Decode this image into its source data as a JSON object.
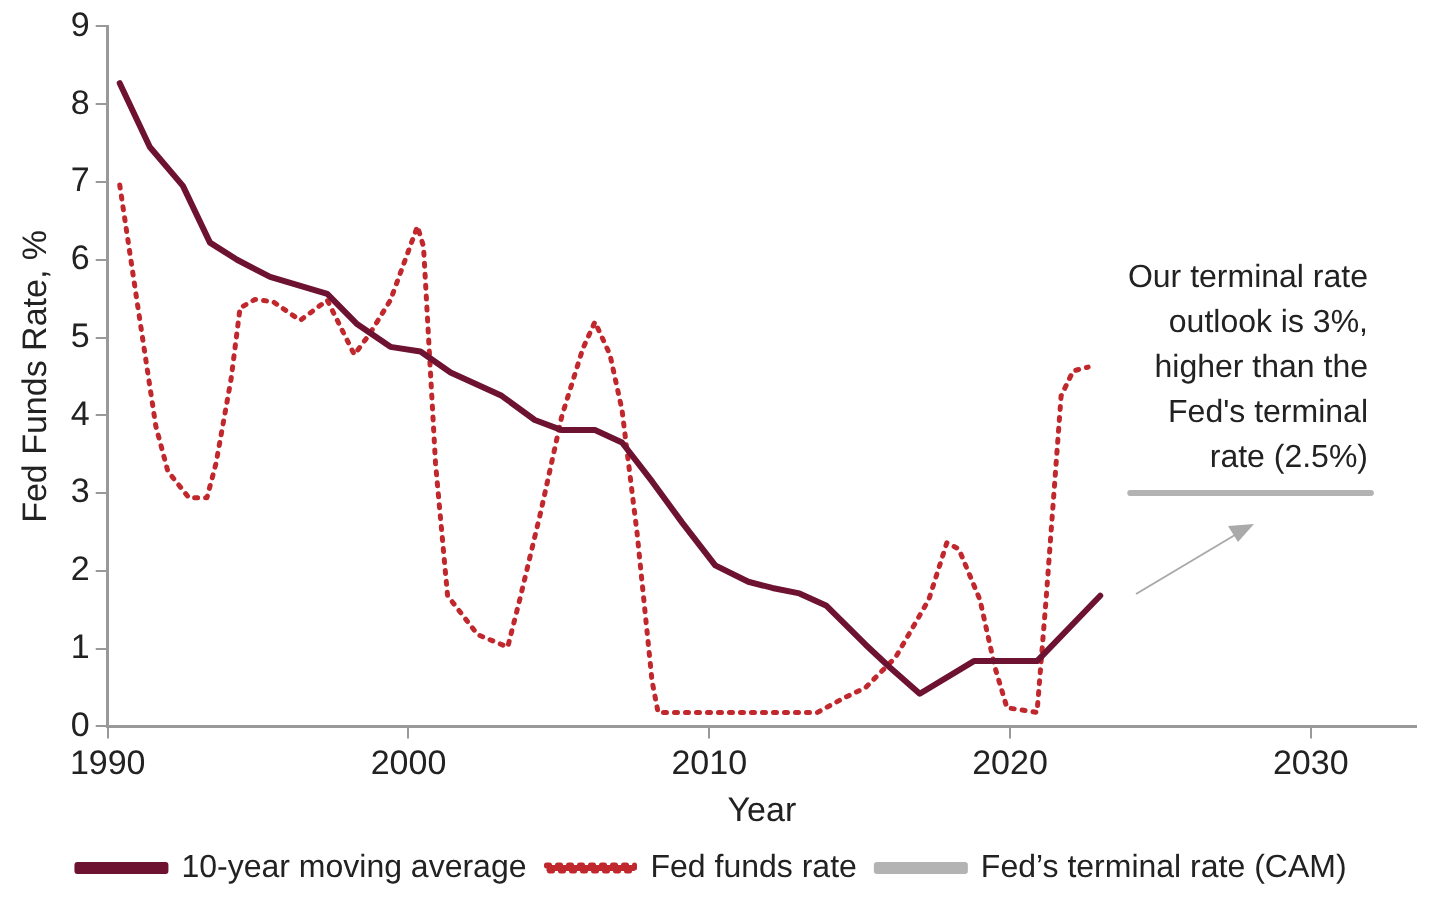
{
  "chart_data": {
    "type": "line",
    "xlabel": "Year",
    "ylabel": "Fed Funds Rate, %",
    "xlim": [
      1990,
      2033.5
    ],
    "xticks": [
      1990,
      2000,
      2010,
      2020,
      2030
    ],
    "ylim": [
      0,
      9
    ],
    "yticks": [
      0,
      1,
      2,
      3,
      4,
      5,
      6,
      7,
      8,
      9
    ],
    "grid": false,
    "legend": "bottom",
    "marker": "none",
    "annotations": [
      "Our terminal rate outlook is 3%, higher than the Fed's terminal rate (2.5%)"
    ],
    "series": [
      {
        "name": "10-year moving average",
        "color": "#6e1232",
        "line_style": "solid",
        "x": [
          1990.4,
          1991.4,
          1992.5,
          1993.4,
          1994.3,
          1995.4,
          1997.3,
          1998.3,
          1999.4,
          2000.4,
          2001.4,
          2003.1,
          2004.2,
          2005.1,
          2006.2,
          2007.1,
          2008.1,
          2009.1,
          2010.2,
          2011.3,
          2012.1,
          2013.0,
          2013.9,
          2015.2,
          2016.0,
          2017.0,
          2018.8,
          2020.9,
          2023.0
        ],
        "values": [
          8.27,
          7.45,
          6.95,
          6.22,
          6.0,
          5.78,
          5.56,
          5.17,
          4.88,
          4.82,
          4.55,
          4.25,
          3.94,
          3.81,
          3.81,
          3.65,
          3.15,
          2.62,
          2.07,
          1.86,
          1.78,
          1.71,
          1.55,
          1.05,
          0.76,
          0.42,
          0.84,
          0.84,
          1.68
        ]
      },
      {
        "name": "Fed funds rate",
        "color": "#c0282d",
        "line_style": "dotted",
        "x": [
          1990.4,
          1991.0,
          1991.6,
          1992.0,
          1992.7,
          1993.3,
          1993.6,
          1994.1,
          1994.4,
          1994.9,
          1995.5,
          1996.4,
          1997.3,
          1998.2,
          1998.7,
          1999.4,
          2000.3,
          2000.5,
          2000.9,
          2001.3,
          2002.3,
          2003.3,
          2003.7,
          2004.4,
          2005.1,
          2005.8,
          2006.2,
          2006.7,
          2007.1,
          2007.6,
          2008.1,
          2008.3,
          2013.6,
          2014.5,
          2015.2,
          2016.2,
          2017.3,
          2017.9,
          2018.3,
          2019.0,
          2019.5,
          2019.9,
          2020.9,
          2021.2,
          2021.7,
          2022.1,
          2022.6
        ],
        "values": [
          6.96,
          5.4,
          3.86,
          3.28,
          2.94,
          2.94,
          3.38,
          4.46,
          5.38,
          5.49,
          5.46,
          5.22,
          5.48,
          4.78,
          5.04,
          5.48,
          6.43,
          6.17,
          3.38,
          1.68,
          1.18,
          1.02,
          1.63,
          2.76,
          3.99,
          4.86,
          5.2,
          4.78,
          4.07,
          2.49,
          0.58,
          0.18,
          0.18,
          0.37,
          0.5,
          0.89,
          1.63,
          2.36,
          2.28,
          1.63,
          0.76,
          0.24,
          0.18,
          1.63,
          4.25,
          4.57,
          4.62
        ]
      },
      {
        "name": "Fed’s terminal rate (CAM)",
        "color": "#b3b3b3",
        "line_style": "solid",
        "x": [
          2024,
          2032
        ],
        "values": [
          3,
          3
        ]
      }
    ]
  }
}
